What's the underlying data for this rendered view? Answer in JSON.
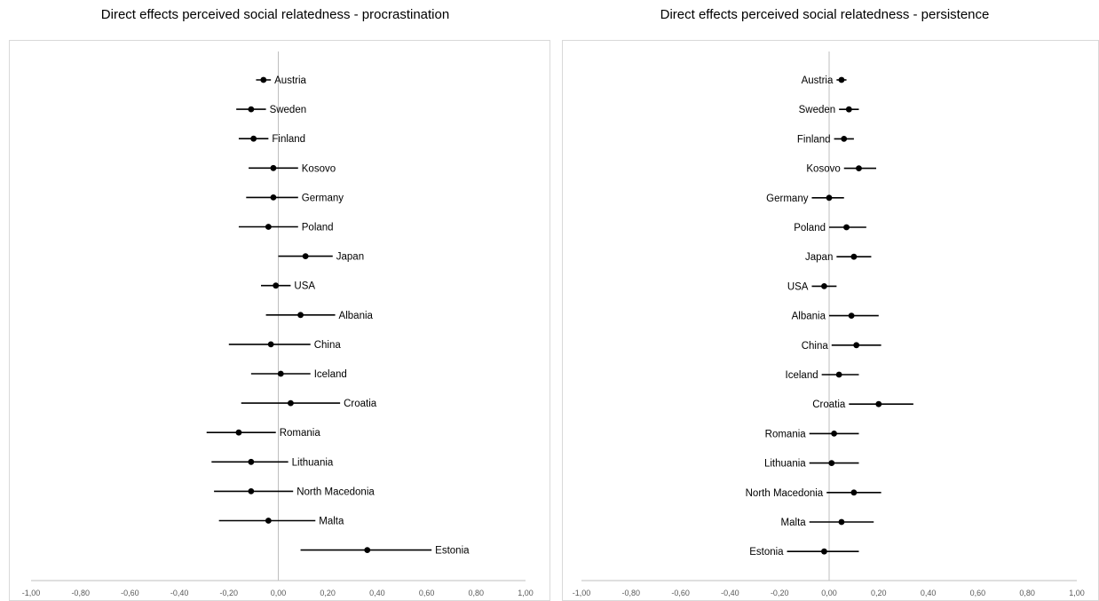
{
  "chart_data": [
    {
      "type": "scatter",
      "title": "Direct effects perceived social relatedness - procrastination",
      "xlim": [
        -1.0,
        1.0
      ],
      "x_ticks": [
        "-1,00",
        "-0,80",
        "-0,60",
        "-0,40",
        "-0,20",
        "0,00",
        "0,20",
        "0,40",
        "0,60",
        "0,80",
        "1,00"
      ],
      "label_position": "right",
      "grid": false,
      "points": [
        {
          "label": "Austria",
          "estimate": -0.06,
          "lower": -0.09,
          "upper": -0.03
        },
        {
          "label": "Sweden",
          "estimate": -0.11,
          "lower": -0.17,
          "upper": -0.05
        },
        {
          "label": "Finland",
          "estimate": -0.1,
          "lower": -0.16,
          "upper": -0.04
        },
        {
          "label": "Kosovo",
          "estimate": -0.02,
          "lower": -0.12,
          "upper": 0.08
        },
        {
          "label": "Germany",
          "estimate": -0.02,
          "lower": -0.13,
          "upper": 0.08
        },
        {
          "label": "Poland",
          "estimate": -0.04,
          "lower": -0.16,
          "upper": 0.08
        },
        {
          "label": "Japan",
          "estimate": 0.11,
          "lower": 0.0,
          "upper": 0.22
        },
        {
          "label": "USA",
          "estimate": -0.01,
          "lower": -0.07,
          "upper": 0.05
        },
        {
          "label": "Albania",
          "estimate": 0.09,
          "lower": -0.05,
          "upper": 0.23
        },
        {
          "label": "China",
          "estimate": -0.03,
          "lower": -0.2,
          "upper": 0.13
        },
        {
          "label": "Iceland",
          "estimate": 0.01,
          "lower": -0.11,
          "upper": 0.13
        },
        {
          "label": "Croatia",
          "estimate": 0.05,
          "lower": -0.15,
          "upper": 0.25
        },
        {
          "label": "Romania",
          "estimate": -0.16,
          "lower": -0.29,
          "upper": -0.01
        },
        {
          "label": "Lithuania",
          "estimate": -0.11,
          "lower": -0.27,
          "upper": 0.04
        },
        {
          "label": "North Macedonia",
          "estimate": -0.11,
          "lower": -0.26,
          "upper": 0.06
        },
        {
          "label": "Malta",
          "estimate": -0.04,
          "lower": -0.24,
          "upper": 0.15
        },
        {
          "label": "Estonia",
          "estimate": 0.36,
          "lower": 0.09,
          "upper": 0.62
        }
      ]
    },
    {
      "type": "scatter",
      "title": "Direct effects perceived social relatedness - persistence",
      "xlim": [
        -1.0,
        1.0
      ],
      "x_ticks": [
        "-1,00",
        "-0,80",
        "-0,60",
        "-0,40",
        "-0,20",
        "0,00",
        "0,20",
        "0,40",
        "0,60",
        "0,80",
        "1,00"
      ],
      "label_position": "left",
      "grid": false,
      "points": [
        {
          "label": "Austria",
          "estimate": 0.05,
          "lower": 0.03,
          "upper": 0.07
        },
        {
          "label": "Sweden",
          "estimate": 0.08,
          "lower": 0.04,
          "upper": 0.12
        },
        {
          "label": "Finland",
          "estimate": 0.06,
          "lower": 0.02,
          "upper": 0.1
        },
        {
          "label": "Kosovo",
          "estimate": 0.12,
          "lower": 0.06,
          "upper": 0.19
        },
        {
          "label": "Germany",
          "estimate": 0.0,
          "lower": -0.07,
          "upper": 0.06
        },
        {
          "label": "Poland",
          "estimate": 0.07,
          "lower": 0.0,
          "upper": 0.15
        },
        {
          "label": "Japan",
          "estimate": 0.1,
          "lower": 0.03,
          "upper": 0.17
        },
        {
          "label": "USA",
          "estimate": -0.02,
          "lower": -0.07,
          "upper": 0.03
        },
        {
          "label": "Albania",
          "estimate": 0.09,
          "lower": 0.0,
          "upper": 0.2
        },
        {
          "label": "China",
          "estimate": 0.11,
          "lower": 0.01,
          "upper": 0.21
        },
        {
          "label": "Iceland",
          "estimate": 0.04,
          "lower": -0.03,
          "upper": 0.12
        },
        {
          "label": "Croatia",
          "estimate": 0.2,
          "lower": 0.08,
          "upper": 0.34
        },
        {
          "label": "Romania",
          "estimate": 0.02,
          "lower": -0.08,
          "upper": 0.12
        },
        {
          "label": "Lithuania",
          "estimate": 0.01,
          "lower": -0.08,
          "upper": 0.12
        },
        {
          "label": "North Macedonia",
          "estimate": 0.1,
          "lower": -0.01,
          "upper": 0.21
        },
        {
          "label": "Malta",
          "estimate": 0.05,
          "lower": -0.08,
          "upper": 0.18
        },
        {
          "label": "Estonia",
          "estimate": -0.02,
          "lower": -0.17,
          "upper": 0.12
        }
      ]
    }
  ]
}
